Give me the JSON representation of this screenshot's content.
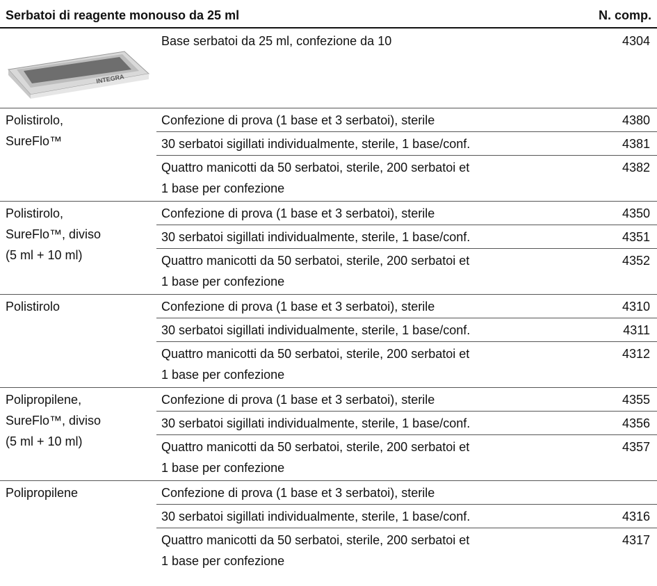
{
  "header": {
    "title": "Serbatoi di reagente monouso da 25 ml",
    "code_heading": "N. comp."
  },
  "base": {
    "image_text": "INTEGRA",
    "description": "Base serbatoi da 25 ml, confezione da 10",
    "code": "4304"
  },
  "groups": [
    {
      "label_lines": [
        "Polistirolo,",
        "SureFlo™"
      ],
      "rows": [
        {
          "description_lines": [
            "Confezione di prova (1 base et 3 serbatoi), sterile"
          ],
          "code": "4380"
        },
        {
          "description_lines": [
            "30 serbatoi sigillati individualmente, sterile, 1 base/conf."
          ],
          "code": "4381"
        },
        {
          "description_lines": [
            "Quattro manicotti da 50 serbatoi, sterile, 200 serbatoi et",
            "1 base per confezione"
          ],
          "code": "4382"
        }
      ]
    },
    {
      "label_lines": [
        "Polistirolo,",
        "SureFlo™, diviso",
        "(5 ml + 10 ml)"
      ],
      "rows": [
        {
          "description_lines": [
            "Confezione di prova (1 base et 3 serbatoi), sterile"
          ],
          "code": "4350"
        },
        {
          "description_lines": [
            "30 serbatoi sigillati individualmente, sterile, 1 base/conf."
          ],
          "code": "4351"
        },
        {
          "description_lines": [
            "Quattro manicotti da 50 serbatoi, sterile, 200 serbatoi et",
            "1 base per confezione"
          ],
          "code": "4352"
        }
      ]
    },
    {
      "label_lines": [
        "Polistirolo"
      ],
      "rows": [
        {
          "description_lines": [
            "Confezione di prova (1 base et 3 serbatoi), sterile"
          ],
          "code": "4310"
        },
        {
          "description_lines": [
            "30 serbatoi sigillati individualmente, sterile, 1 base/conf."
          ],
          "code": "4311"
        },
        {
          "description_lines": [
            "Quattro manicotti da 50 serbatoi, sterile, 200 serbatoi et",
            "1 base per confezione"
          ],
          "code": "4312"
        }
      ]
    },
    {
      "label_lines": [
        "Polipropilene,",
        "SureFlo™, diviso",
        "(5 ml + 10 ml)"
      ],
      "rows": [
        {
          "description_lines": [
            "Confezione di prova (1 base et 3 serbatoi), sterile"
          ],
          "code": "4355"
        },
        {
          "description_lines": [
            "30 serbatoi sigillati individualmente, sterile, 1 base/conf."
          ],
          "code": "4356"
        },
        {
          "description_lines": [
            "Quattro manicotti da 50 serbatoi, sterile, 200 serbatoi et",
            "1 base per confezione"
          ],
          "code": "4357"
        }
      ]
    },
    {
      "label_lines": [
        "Polipropilene"
      ],
      "rows": [
        {
          "description_lines": [
            "Confezione di prova (1 base et 3 serbatoi), sterile"
          ]
        },
        {
          "description_lines": [
            "30 serbatoi sigillati individualmente, sterile, 1 base/conf."
          ],
          "code": "4316"
        },
        {
          "description_lines": [
            "Quattro manicotti da 50 serbatoi, sterile, 200 serbatoi et",
            "1 base per confezione"
          ],
          "code": "4317"
        }
      ]
    }
  ]
}
